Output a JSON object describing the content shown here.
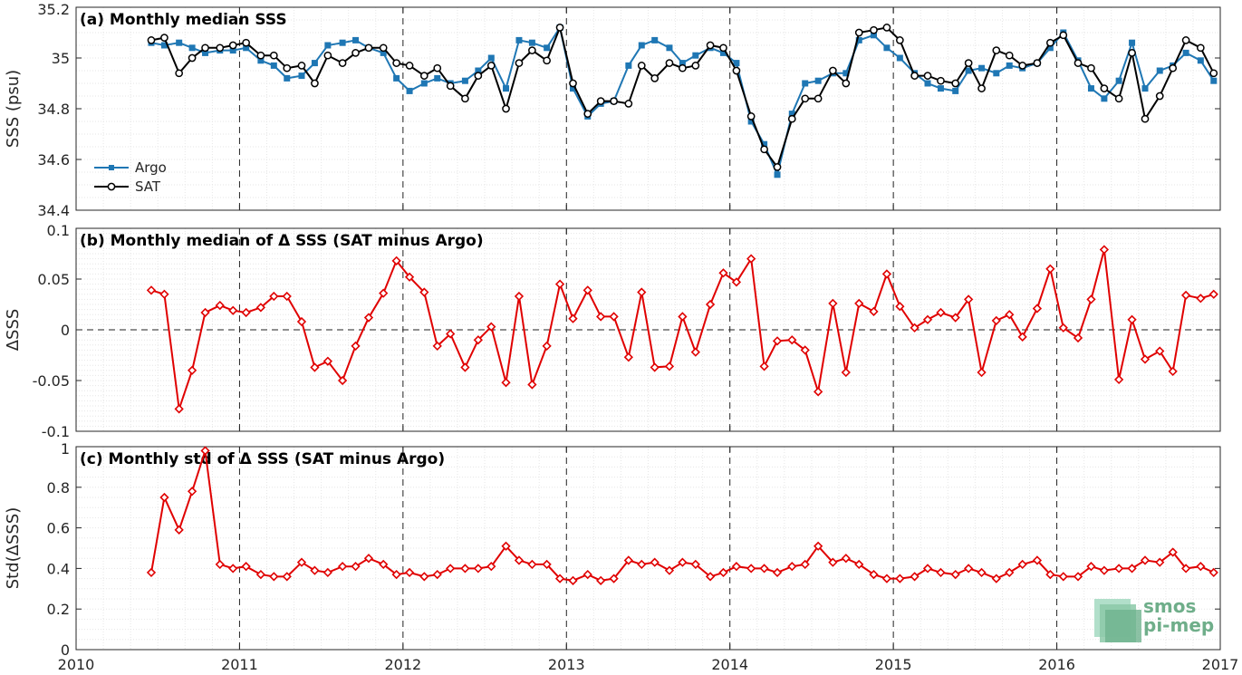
{
  "colors": {
    "argo": "#1f77b4",
    "sat": "#000000",
    "delta": "#e00000",
    "grid": "#e6e6e6"
  },
  "logo": {
    "line1": "smos",
    "line2": "pi-mep"
  },
  "chart_data": [
    {
      "type": "line",
      "title": "(a) Monthly median SSS",
      "ylabel": "SSS (psu)",
      "xlim": [
        2010,
        2017
      ],
      "ylim": [
        34.4,
        35.2
      ],
      "x_ticks": [
        "2010",
        "2011",
        "2012",
        "2013",
        "2014",
        "2015",
        "2016",
        "2017"
      ],
      "y_ticks": [
        "34.4",
        "34.6",
        "34.8",
        "35",
        "35.2"
      ],
      "legend": {
        "position": "bottom-left"
      },
      "series": [
        {
          "name": "Argo",
          "x": [
            2010.46,
            2010.54,
            2010.63,
            2010.71,
            2010.79,
            2010.88,
            2010.96,
            2011.04,
            2011.13,
            2011.21,
            2011.29,
            2011.38,
            2011.46,
            2011.54,
            2011.63,
            2011.71,
            2011.79,
            2011.88,
            2011.96,
            2012.04,
            2012.13,
            2012.21,
            2012.29,
            2012.38,
            2012.46,
            2012.54,
            2012.63,
            2012.71,
            2012.79,
            2012.88,
            2012.96,
            2013.04,
            2013.13,
            2013.21,
            2013.29,
            2013.38,
            2013.46,
            2013.54,
            2013.63,
            2013.71,
            2013.79,
            2013.88,
            2013.96,
            2014.04,
            2014.13,
            2014.21,
            2014.29,
            2014.38,
            2014.46,
            2014.54,
            2014.63,
            2014.71,
            2014.79,
            2014.88,
            2014.96,
            2015.04,
            2015.13,
            2015.21,
            2015.29,
            2015.38,
            2015.46,
            2015.54,
            2015.63,
            2015.71,
            2015.79,
            2015.88,
            2015.96,
            2016.04,
            2016.13,
            2016.21,
            2016.29,
            2016.38,
            2016.46,
            2016.54,
            2016.63,
            2016.71,
            2016.79,
            2016.88,
            2016.96
          ],
          "values": [
            35.06,
            35.05,
            35.06,
            35.04,
            35.02,
            35.03,
            35.03,
            35.04,
            34.99,
            34.97,
            34.92,
            34.93,
            34.98,
            35.05,
            35.06,
            35.07,
            35.04,
            35.02,
            34.92,
            34.87,
            34.9,
            34.92,
            34.9,
            34.91,
            34.95,
            35.0,
            34.88,
            35.07,
            35.06,
            35.04,
            35.12,
            34.88,
            34.77,
            34.82,
            34.83,
            34.97,
            35.05,
            35.07,
            35.04,
            34.98,
            35.01,
            35.04,
            35.02,
            34.98,
            34.75,
            34.66,
            34.54,
            34.78,
            34.9,
            34.91,
            34.94,
            34.94,
            35.07,
            35.09,
            35.04,
            35.0,
            34.94,
            34.9,
            34.88,
            34.87,
            34.95,
            34.96,
            34.94,
            34.97,
            34.96,
            34.98,
            35.04,
            35.1,
            34.99,
            34.88,
            34.84,
            34.91,
            35.06,
            34.88,
            34.95,
            34.97,
            35.02,
            34.99,
            34.91
          ]
        },
        {
          "name": "SAT",
          "x": [
            2010.46,
            2010.54,
            2010.63,
            2010.71,
            2010.79,
            2010.88,
            2010.96,
            2011.04,
            2011.13,
            2011.21,
            2011.29,
            2011.38,
            2011.46,
            2011.54,
            2011.63,
            2011.71,
            2011.79,
            2011.88,
            2011.96,
            2012.04,
            2012.13,
            2012.21,
            2012.29,
            2012.38,
            2012.46,
            2012.54,
            2012.63,
            2012.71,
            2012.79,
            2012.88,
            2012.96,
            2013.04,
            2013.13,
            2013.21,
            2013.29,
            2013.38,
            2013.46,
            2013.54,
            2013.63,
            2013.71,
            2013.79,
            2013.88,
            2013.96,
            2014.04,
            2014.13,
            2014.21,
            2014.29,
            2014.38,
            2014.46,
            2014.54,
            2014.63,
            2014.71,
            2014.79,
            2014.88,
            2014.96,
            2015.04,
            2015.13,
            2015.21,
            2015.29,
            2015.38,
            2015.46,
            2015.54,
            2015.63,
            2015.71,
            2015.79,
            2015.88,
            2015.96,
            2016.04,
            2016.13,
            2016.21,
            2016.29,
            2016.38,
            2016.46,
            2016.54,
            2016.63,
            2016.71,
            2016.79,
            2016.88,
            2016.96
          ],
          "values": [
            35.07,
            35.08,
            34.94,
            35.0,
            35.04,
            35.04,
            35.05,
            35.06,
            35.01,
            35.01,
            34.96,
            34.97,
            34.9,
            35.01,
            34.98,
            35.02,
            35.04,
            35.04,
            34.98,
            34.97,
            34.93,
            34.96,
            34.89,
            34.84,
            34.93,
            34.97,
            34.8,
            34.98,
            35.03,
            34.99,
            35.12,
            34.9,
            34.78,
            34.83,
            34.83,
            34.82,
            34.97,
            34.92,
            34.98,
            34.96,
            34.97,
            35.05,
            35.04,
            34.95,
            34.77,
            34.64,
            34.57,
            34.76,
            34.84,
            34.84,
            34.95,
            34.9,
            35.1,
            35.11,
            35.12,
            35.07,
            34.93,
            34.93,
            34.91,
            34.9,
            34.98,
            34.88,
            35.03,
            35.01,
            34.97,
            34.98,
            35.06,
            35.09,
            34.98,
            34.96,
            34.88,
            34.84,
            35.02,
            34.76,
            34.85,
            34.96,
            35.07,
            35.04,
            34.94
          ]
        }
      ]
    },
    {
      "type": "line",
      "title": "(b) Monthly median of Δ SSS (SAT minus Argo)",
      "ylabel": "ΔSSS",
      "xlim": [
        2010,
        2017
      ],
      "ylim": [
        -0.1,
        0.1
      ],
      "x_ticks": [
        "2010",
        "2011",
        "2012",
        "2013",
        "2014",
        "2015",
        "2016",
        "2017"
      ],
      "y_ticks": [
        "-0.1",
        "-0.05",
        "0",
        "0.05",
        "0.1"
      ],
      "reference_line": 0,
      "series": [
        {
          "name": "",
          "x": [
            2010.46,
            2010.54,
            2010.63,
            2010.71,
            2010.79,
            2010.88,
            2010.96,
            2011.04,
            2011.13,
            2011.21,
            2011.29,
            2011.38,
            2011.46,
            2011.54,
            2011.63,
            2011.71,
            2011.79,
            2011.88,
            2011.96,
            2012.04,
            2012.13,
            2012.21,
            2012.29,
            2012.38,
            2012.46,
            2012.54,
            2012.63,
            2012.71,
            2012.79,
            2012.88,
            2012.96,
            2013.04,
            2013.13,
            2013.21,
            2013.29,
            2013.38,
            2013.46,
            2013.54,
            2013.63,
            2013.71,
            2013.79,
            2013.88,
            2013.96,
            2014.04,
            2014.13,
            2014.21,
            2014.29,
            2014.38,
            2014.46,
            2014.54,
            2014.63,
            2014.71,
            2014.79,
            2014.88,
            2014.96,
            2015.04,
            2015.13,
            2015.21,
            2015.29,
            2015.38,
            2015.46,
            2015.54,
            2015.63,
            2015.71,
            2015.79,
            2015.88,
            2015.96,
            2016.04,
            2016.13,
            2016.21,
            2016.29,
            2016.38,
            2016.46,
            2016.54,
            2016.63,
            2016.71,
            2016.79,
            2016.88,
            2016.96
          ],
          "values": [
            0.039,
            0.035,
            -0.078,
            -0.04,
            0.017,
            0.024,
            0.019,
            0.017,
            0.022,
            0.033,
            0.033,
            0.008,
            -0.037,
            -0.031,
            -0.05,
            -0.016,
            0.012,
            0.036,
            0.068,
            0.052,
            0.037,
            -0.016,
            -0.004,
            -0.037,
            -0.01,
            0.003,
            -0.052,
            0.033,
            -0.054,
            -0.016,
            0.045,
            0.011,
            0.039,
            0.013,
            0.013,
            -0.027,
            0.037,
            -0.037,
            -0.036,
            0.013,
            -0.022,
            0.025,
            0.056,
            0.047,
            0.07,
            -0.036,
            -0.011,
            -0.01,
            -0.02,
            -0.061,
            0.026,
            -0.042,
            0.026,
            0.018,
            0.055,
            0.023,
            0.002,
            0.01,
            0.017,
            0.012,
            0.03,
            -0.042,
            0.009,
            0.015,
            -0.007,
            0.021,
            0.06,
            0.002,
            -0.008,
            0.03,
            0.079,
            -0.049,
            0.01,
            -0.029,
            -0.021,
            -0.041,
            0.034,
            0.031,
            0.035
          ]
        }
      ]
    },
    {
      "type": "line",
      "title": "(c) Monthly std of Δ SSS (SAT minus Argo)",
      "ylabel": "Std(ΔSSS)",
      "xlim": [
        2010,
        2017
      ],
      "ylim": [
        0,
        1
      ],
      "x_ticks": [
        "2010",
        "2011",
        "2012",
        "2013",
        "2014",
        "2015",
        "2016",
        "2017"
      ],
      "y_ticks": [
        "0",
        "0.2",
        "0.4",
        "0.6",
        "0.8",
        "1"
      ],
      "series": [
        {
          "name": "",
          "x": [
            2010.46,
            2010.54,
            2010.63,
            2010.71,
            2010.79,
            2010.88,
            2010.96,
            2011.04,
            2011.13,
            2011.21,
            2011.29,
            2011.38,
            2011.46,
            2011.54,
            2011.63,
            2011.71,
            2011.79,
            2011.88,
            2011.96,
            2012.04,
            2012.13,
            2012.21,
            2012.29,
            2012.38,
            2012.46,
            2012.54,
            2012.63,
            2012.71,
            2012.79,
            2012.88,
            2012.96,
            2013.04,
            2013.13,
            2013.21,
            2013.29,
            2013.38,
            2013.46,
            2013.54,
            2013.63,
            2013.71,
            2013.79,
            2013.88,
            2013.96,
            2014.04,
            2014.13,
            2014.21,
            2014.29,
            2014.38,
            2014.46,
            2014.54,
            2014.63,
            2014.71,
            2014.79,
            2014.88,
            2014.96,
            2015.04,
            2015.13,
            2015.21,
            2015.29,
            2015.38,
            2015.46,
            2015.54,
            2015.63,
            2015.71,
            2015.79,
            2015.88,
            2015.96,
            2016.04,
            2016.13,
            2016.21,
            2016.29,
            2016.38,
            2016.46,
            2016.54,
            2016.63,
            2016.71,
            2016.79,
            2016.88,
            2016.96
          ],
          "values": [
            0.38,
            0.75,
            0.59,
            0.78,
            0.98,
            0.42,
            0.4,
            0.41,
            0.37,
            0.36,
            0.36,
            0.43,
            0.39,
            0.38,
            0.41,
            0.41,
            0.45,
            0.42,
            0.37,
            0.38,
            0.36,
            0.37,
            0.4,
            0.4,
            0.4,
            0.41,
            0.51,
            0.44,
            0.42,
            0.42,
            0.35,
            0.34,
            0.37,
            0.34,
            0.35,
            0.44,
            0.42,
            0.43,
            0.39,
            0.43,
            0.42,
            0.36,
            0.38,
            0.41,
            0.4,
            0.4,
            0.38,
            0.41,
            0.42,
            0.51,
            0.43,
            0.45,
            0.42,
            0.37,
            0.35,
            0.35,
            0.36,
            0.4,
            0.38,
            0.37,
            0.4,
            0.38,
            0.35,
            0.38,
            0.42,
            0.44,
            0.37,
            0.36,
            0.36,
            0.41,
            0.39,
            0.4,
            0.4,
            0.44,
            0.43,
            0.48,
            0.4,
            0.41,
            0.38
          ]
        }
      ]
    }
  ]
}
